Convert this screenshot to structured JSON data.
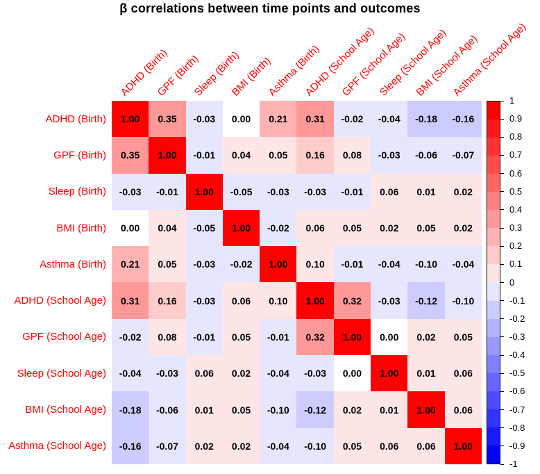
{
  "title": "β correlations between time points and outcomes",
  "chart_data": {
    "type": "heatmap",
    "title": "β correlations between time points and outcomes",
    "categories": [
      "ADHD (Birth)",
      "GPF (Birth)",
      "Sleep (Birth)",
      "BMI (Birth)",
      "Asthma (Birth)",
      "ADHD (School Age)",
      "GPF (School Age)",
      "Sleep (School Age)",
      "BMI (School Age)",
      "Asthma (School Age)"
    ],
    "matrix": [
      [
        1.0,
        0.35,
        -0.03,
        0.0,
        0.21,
        0.31,
        -0.02,
        -0.04,
        -0.18,
        -0.16
      ],
      [
        0.35,
        1.0,
        -0.01,
        0.04,
        0.05,
        0.16,
        0.08,
        -0.03,
        -0.06,
        -0.07
      ],
      [
        -0.03,
        -0.01,
        1.0,
        -0.05,
        -0.03,
        -0.03,
        -0.01,
        0.06,
        0.01,
        0.02
      ],
      [
        0.0,
        0.04,
        -0.05,
        1.0,
        -0.02,
        0.06,
        0.05,
        0.02,
        0.05,
        0.02
      ],
      [
        0.21,
        0.05,
        -0.03,
        -0.02,
        1.0,
        0.1,
        -0.01,
        -0.04,
        -0.1,
        -0.04
      ],
      [
        0.31,
        0.16,
        -0.03,
        0.06,
        0.1,
        1.0,
        0.32,
        -0.03,
        -0.12,
        -0.1
      ],
      [
        -0.02,
        0.08,
        -0.01,
        0.05,
        -0.01,
        0.32,
        1.0,
        0.0,
        0.02,
        0.05
      ],
      [
        -0.04,
        -0.03,
        0.06,
        0.02,
        -0.04,
        -0.03,
        0.0,
        1.0,
        0.01,
        0.06
      ],
      [
        -0.18,
        -0.06,
        0.01,
        0.05,
        -0.1,
        -0.12,
        0.02,
        0.01,
        1.0,
        0.06
      ],
      [
        -0.16,
        -0.07,
        0.02,
        0.02,
        -0.04,
        -0.1,
        0.05,
        0.06,
        0.06,
        1.0
      ]
    ],
    "value_decimals": 2,
    "colorbar": {
      "position": "right",
      "min": -1,
      "max": 1,
      "bins": 20,
      "tick_labels": [
        "1",
        "0.9",
        "0.8",
        "0.7",
        "0.6",
        "0.5",
        "0.4",
        "0.3",
        "0.2",
        "0.1",
        "0",
        "-0.1",
        "-0.2",
        "-0.3",
        "-0.4",
        "-0.5",
        "-0.6",
        "-0.7",
        "-0.8",
        "-0.9",
        "-1"
      ]
    },
    "colors": {
      "positive": "#FF0000",
      "negative": "#0000FF",
      "neutral": "#FFFFFF",
      "axis_label": "#FF0000",
      "cell_text": "#000000",
      "title_text": "#000000"
    },
    "grid": false,
    "legend_position": "right"
  }
}
